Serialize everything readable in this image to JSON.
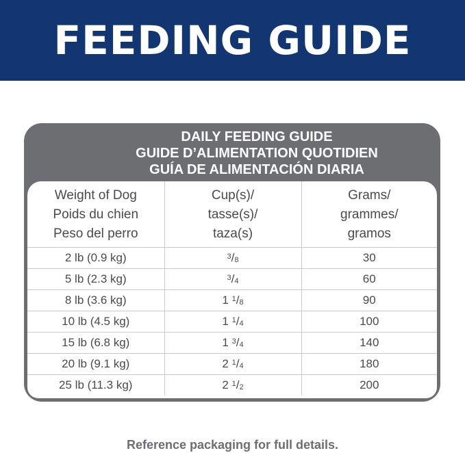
{
  "banner": {
    "title": "FEEDING GUIDE"
  },
  "card": {
    "titles": [
      "DAILY FEEDING GUIDE",
      "GUIDE D’ALIMENTATION QUOTIDIEN",
      "GUÍA DE ALIMENTACIÓN DIARIA"
    ]
  },
  "table": {
    "headers": [
      [
        "Weight of Dog",
        "Poids du chien",
        "Peso del perro"
      ],
      [
        "Cup(s)/",
        "tasse(s)/",
        "taza(s)"
      ],
      [
        "Grams/",
        "grammes/",
        "gramos"
      ]
    ],
    "rows": [
      {
        "weight": "2 lb (0.9 kg)",
        "cups": {
          "whole": "",
          "num": "3",
          "den": "8"
        },
        "grams": "30"
      },
      {
        "weight": "5 lb (2.3 kg)",
        "cups": {
          "whole": "",
          "num": "3",
          "den": "4"
        },
        "grams": "60"
      },
      {
        "weight": "8 lb (3.6 kg)",
        "cups": {
          "whole": "1",
          "num": "1",
          "den": "8"
        },
        "grams": "90"
      },
      {
        "weight": "10 lb (4.5 kg)",
        "cups": {
          "whole": "1",
          "num": "1",
          "den": "4"
        },
        "grams": "100"
      },
      {
        "weight": "15 lb (6.8 kg)",
        "cups": {
          "whole": "1",
          "num": "3",
          "den": "4"
        },
        "grams": "140"
      },
      {
        "weight": "20 lb (9.1 kg)",
        "cups": {
          "whole": "2",
          "num": "1",
          "den": "4"
        },
        "grams": "180"
      },
      {
        "weight": "25 lb (11.3 kg)",
        "cups": {
          "whole": "2",
          "num": "1",
          "den": "2"
        },
        "grams": "200"
      }
    ]
  },
  "footer": {
    "note": "Reference packaging for full details."
  },
  "colors": {
    "banner": "#123672",
    "card": "#6d6e72",
    "text": "#4a4a4c"
  }
}
